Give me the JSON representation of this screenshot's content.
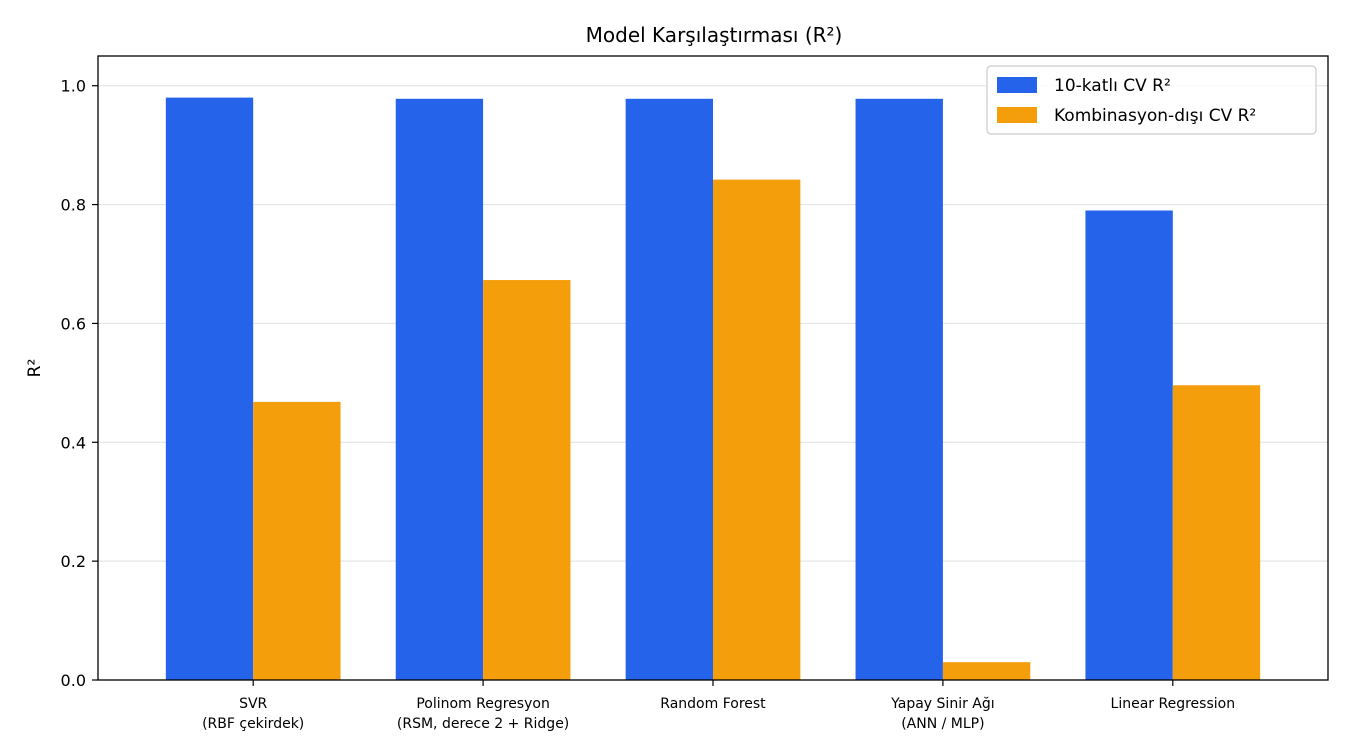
{
  "chart_data": {
    "type": "bar",
    "title": "Model Karşılaştırması (R²)",
    "xlabel": "",
    "ylabel": "R²",
    "ylim": [
      0,
      1.05
    ],
    "yticks": [
      "0.0",
      "0.2",
      "0.4",
      "0.6",
      "0.8",
      "1.0"
    ],
    "ytick_values": [
      0,
      0.2,
      0.4,
      0.6,
      0.8,
      1.0
    ],
    "grid": "horizontal",
    "legend_position": "top-right",
    "categories": [
      [
        "SVR",
        "(RBF çekirdek)"
      ],
      [
        "Polinom Regresyon",
        "(RSM, derece 2 + Ridge)"
      ],
      [
        "Random Forest"
      ],
      [
        "Yapay Sinir Ağı",
        "(ANN / MLP)"
      ],
      [
        "Linear Regression"
      ]
    ],
    "series": [
      {
        "name": "10-katlı CV  R²",
        "color": "#2563eb",
        "values": [
          0.98,
          0.978,
          0.978,
          0.978,
          0.79
        ]
      },
      {
        "name": "Kombinasyon-dışı CV  R²",
        "color": "#f59e0b",
        "values": [
          0.468,
          0.673,
          0.842,
          0.03,
          0.496
        ]
      }
    ]
  }
}
